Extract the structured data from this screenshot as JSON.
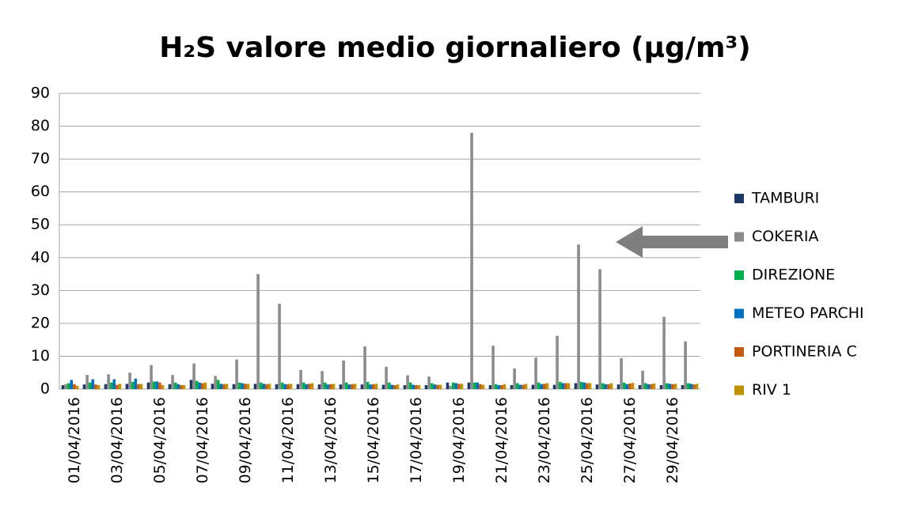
{
  "chart_data": {
    "type": "bar",
    "title": "H₂S valore medio giornaliero (µg/m³)",
    "categories": [
      "01/04/2016",
      null,
      "03/04/2016",
      null,
      "05/04/2016",
      null,
      "07/04/2016",
      null,
      "09/04/2016",
      null,
      "11/04/2016",
      null,
      "13/04/2016",
      null,
      "15/04/2016",
      null,
      "17/04/2016",
      null,
      "19/04/2016",
      null,
      "21/04/2016",
      null,
      "23/04/2016",
      null,
      "25/04/2016",
      null,
      "27/04/2016",
      null,
      "29/04/2016",
      null
    ],
    "series": [
      {
        "name": "TAMBURI",
        "color": "#1f3864",
        "values": [
          1.2,
          1.4,
          1.5,
          1.6,
          2,
          1.5,
          2.8,
          1.6,
          1.5,
          1.6,
          1.5,
          1.5,
          1.4,
          1.4,
          1.4,
          1.3,
          1.2,
          1.2,
          2,
          2,
          1.2,
          1.2,
          1.3,
          1.3,
          1.8,
          1.4,
          1.4,
          1.2,
          1.2,
          1.2
        ]
      },
      {
        "name": "COKERIA",
        "color": "#8c8c8c",
        "values": [
          1.5,
          4.3,
          4.5,
          5,
          7.3,
          4.3,
          7.8,
          4,
          9,
          35,
          26,
          5.8,
          5.5,
          8.7,
          13,
          6.8,
          4.2,
          3.8,
          1,
          78,
          13.2,
          6.3,
          9.6,
          16.2,
          44,
          36.5,
          9.4,
          5.6,
          22,
          14.5
        ]
      },
      {
        "name": "DIREZIONE",
        "color": "#00b050",
        "values": [
          1.8,
          2,
          2,
          2.2,
          2.3,
          2,
          2.5,
          2.8,
          2,
          2,
          2,
          2,
          2,
          2,
          2.2,
          2,
          2,
          1.8,
          2,
          2,
          1.5,
          1.8,
          2,
          2.2,
          2.2,
          1.8,
          2,
          1.8,
          1.8,
          1.8
        ]
      },
      {
        "name": "METEO PARCHI",
        "color": "#0070c0",
        "values": [
          2.8,
          3,
          3,
          3.2,
          2.3,
          1.5,
          2,
          1.6,
          1.8,
          1.6,
          1.5,
          1.5,
          1.4,
          1.4,
          1.4,
          1.3,
          1.3,
          1.4,
          1.8,
          2,
          1.2,
          1.3,
          1.5,
          1.8,
          2,
          1.5,
          1.5,
          1.5,
          1.6,
          1.6
        ]
      },
      {
        "name": "PORTINERIA C",
        "color": "#c55a11",
        "values": [
          1.5,
          1.4,
          1.3,
          1.5,
          2,
          1.2,
          1.8,
          1.5,
          1.6,
          1.5,
          1.5,
          1.6,
          1.5,
          1.5,
          1.5,
          1.2,
          1.2,
          1.3,
          1.6,
          1.5,
          1.2,
          1.3,
          1.6,
          1.8,
          1.8,
          1.5,
          1.7,
          1.5,
          1.5,
          1.4
        ]
      },
      {
        "name": "RIV 1",
        "color": "#bf9000",
        "values": [
          1,
          1.2,
          1.6,
          1.6,
          1.2,
          1.2,
          2,
          1.6,
          1.6,
          1.6,
          1.6,
          1.8,
          1.6,
          1.6,
          1.6,
          1.4,
          1.2,
          1.3,
          1.6,
          1.3,
          1.5,
          1.6,
          1.8,
          1.8,
          1.8,
          1.8,
          1.9,
          1.7,
          1.6,
          1.6
        ]
      }
    ],
    "ylim": [
      0,
      90
    ],
    "yticks": [
      0,
      10,
      20,
      30,
      40,
      50,
      60,
      70,
      80,
      90
    ],
    "grid": true
  }
}
